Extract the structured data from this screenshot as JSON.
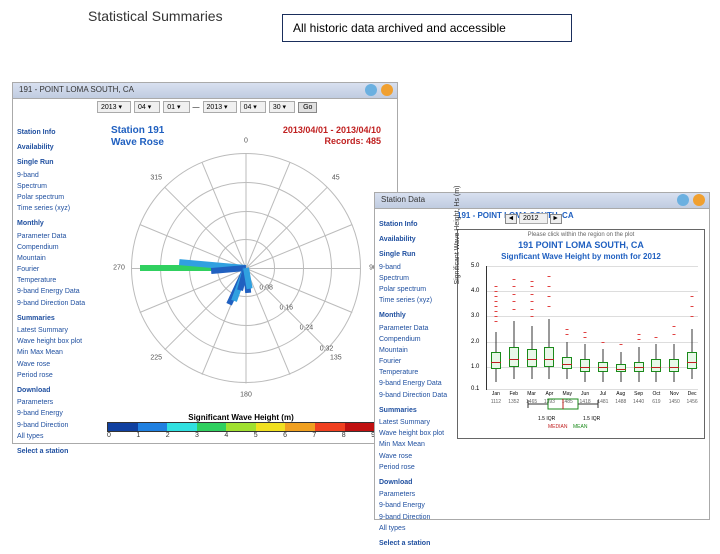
{
  "titles": {
    "main": "Statistical Summaries",
    "archive_note": "All historic data archived and accessible"
  },
  "left_panel": {
    "header": "191 - POINT LOMA SOUTH, CA",
    "date_selectors": [
      "2013",
      "04",
      "01",
      "2013",
      "04",
      "30"
    ],
    "go_label": "Go",
    "sidebar": {
      "groups": [
        {
          "head": "Station Info",
          "items": []
        },
        {
          "head": "Availability",
          "items": []
        },
        {
          "head": "Single Run",
          "items": [
            "9-band",
            "Spectrum",
            "Polar spectrum",
            "Time series (xyz)"
          ]
        },
        {
          "head": "Monthly",
          "items": [
            "Parameter Data",
            "Compendium",
            "Mountain",
            "Fourier",
            "Temperature",
            "9-band Energy Data",
            "9-band Direction Data"
          ]
        },
        {
          "head": "Summaries",
          "items": [
            "Latest Summary",
            "Wave height box plot",
            "Min Max Mean",
            "Wave rose",
            "Period rose"
          ]
        },
        {
          "head": "Download",
          "items": [
            "Parameters",
            "9-band Energy",
            "9-band Direction",
            "All types"
          ]
        },
        {
          "head": "Select a station",
          "items": []
        }
      ]
    },
    "chart": {
      "title_left_1": "Station 191",
      "title_left_2": "Wave Rose",
      "title_right_1": "2013/04/01 - 2013/04/10",
      "title_right_2": "Records: 485",
      "compass": [
        "0",
        "45",
        "90",
        "135",
        "180",
        "225",
        "270",
        "315"
      ],
      "ring_labels": [
        "0.08",
        "0.16",
        "0.24",
        "0.32"
      ],
      "bars": [
        {
          "angle": 270,
          "len": 0.92,
          "color": "#30d060"
        },
        {
          "angle": 275,
          "len": 0.58,
          "color": "#30a0e0"
        },
        {
          "angle": 265,
          "len": 0.3,
          "color": "#2060c0"
        },
        {
          "angle": 205,
          "len": 0.35,
          "color": "#2060c0"
        },
        {
          "angle": 200,
          "len": 0.3,
          "color": "#30a0e0"
        },
        {
          "angle": 195,
          "len": 0.2,
          "color": "#2060c0"
        },
        {
          "angle": 175,
          "len": 0.22,
          "color": "#2060c0"
        },
        {
          "angle": 170,
          "len": 0.18,
          "color": "#30a0e0"
        }
      ]
    },
    "legend": {
      "title": "Significant Wave Height (m)",
      "colors": [
        "#1040a0",
        "#2080e0",
        "#30e0e0",
        "#30d060",
        "#a0e030",
        "#f0e020",
        "#f0a020",
        "#f04020",
        "#c01010"
      ],
      "ticks": [
        "0",
        "1",
        "2",
        "3",
        "4",
        "5",
        "6",
        "7",
        "8",
        "9"
      ]
    }
  },
  "right_panel": {
    "header": "Station Data",
    "header_sub": "191 - POINT LOMA SOUTH, CA",
    "year": "2012",
    "sidebar": {
      "groups": [
        {
          "head": "Station Info",
          "items": []
        },
        {
          "head": "Availability",
          "items": []
        },
        {
          "head": "Single Run",
          "items": [
            "9-band",
            "Spectrum",
            "Polar spectrum",
            "Time series (xyz)"
          ]
        },
        {
          "head": "Monthly",
          "items": [
            "Parameter Data",
            "Compendium",
            "Mountain",
            "Fourier",
            "Temperature",
            "9-band Energy Data",
            "9-band Direction Data"
          ]
        },
        {
          "head": "Summaries",
          "items": [
            "Latest Summary",
            "Wave height box plot",
            "Min Max Mean",
            "Wave rose",
            "Period rose"
          ]
        },
        {
          "head": "Download",
          "items": [
            "Parameters",
            "9-band Energy",
            "9-band Direction",
            "All types"
          ]
        },
        {
          "head": "Select a station",
          "items": []
        }
      ]
    },
    "chart": {
      "hint": "Please click within the region on the plot",
      "title1": "191  POINT LOMA SOUTH, CA",
      "title2": "Signficant Wave Height by month for 2012",
      "ylabel": "Significant Wave Height, Hs (m)",
      "ylim": [
        0,
        5
      ],
      "yticks": [
        0.1,
        1.0,
        2.0,
        3.0,
        4.0,
        5.0
      ],
      "months": [
        "Jan",
        "Feb",
        "Mar",
        "Apr",
        "May",
        "Jun",
        "Jul",
        "Aug",
        "Sep",
        "Oct",
        "Nov",
        "Dec"
      ],
      "counts": [
        "1112",
        "1352",
        "1465",
        "1393",
        "1485",
        "1418",
        "1481",
        "1488",
        "1440",
        "619",
        "1450",
        "1456"
      ],
      "boxes": [
        {
          "wl": 0.4,
          "q1": 0.9,
          "med": 1.2,
          "q3": 1.6,
          "wh": 2.4,
          "out": [
            2.8,
            3.0,
            3.2,
            3.4,
            3.6,
            3.8,
            4.0,
            4.2
          ]
        },
        {
          "wl": 0.5,
          "q1": 1.0,
          "med": 1.3,
          "q3": 1.8,
          "wh": 2.8,
          "out": [
            3.3,
            3.6,
            3.9,
            4.2,
            4.5
          ]
        },
        {
          "wl": 0.5,
          "q1": 1.0,
          "med": 1.3,
          "q3": 1.7,
          "wh": 2.6,
          "out": [
            3.0,
            3.3,
            3.6,
            3.9,
            4.2,
            4.4
          ]
        },
        {
          "wl": 0.5,
          "q1": 1.0,
          "med": 1.3,
          "q3": 1.8,
          "wh": 2.9,
          "out": [
            3.4,
            3.8,
            4.2,
            4.6
          ]
        },
        {
          "wl": 0.5,
          "q1": 0.9,
          "med": 1.1,
          "q3": 1.4,
          "wh": 2.0,
          "out": [
            2.3,
            2.5
          ]
        },
        {
          "wl": 0.4,
          "q1": 0.8,
          "med": 1.0,
          "q3": 1.3,
          "wh": 1.9,
          "out": [
            2.2,
            2.4
          ]
        },
        {
          "wl": 0.4,
          "q1": 0.8,
          "med": 1.0,
          "q3": 1.2,
          "wh": 1.7,
          "out": [
            2.0
          ]
        },
        {
          "wl": 0.4,
          "q1": 0.8,
          "med": 0.9,
          "q3": 1.1,
          "wh": 1.6,
          "out": [
            1.9
          ]
        },
        {
          "wl": 0.4,
          "q1": 0.8,
          "med": 1.0,
          "q3": 1.2,
          "wh": 1.8,
          "out": [
            2.1,
            2.3
          ]
        },
        {
          "wl": 0.4,
          "q1": 0.8,
          "med": 1.0,
          "q3": 1.3,
          "wh": 1.9,
          "out": [
            2.2
          ]
        },
        {
          "wl": 0.4,
          "q1": 0.8,
          "med": 1.0,
          "q3": 1.3,
          "wh": 1.9,
          "out": [
            2.3,
            2.6
          ]
        },
        {
          "wl": 0.5,
          "q1": 0.9,
          "med": 1.2,
          "q3": 1.6,
          "wh": 2.5,
          "out": [
            3.0,
            3.4,
            3.8
          ]
        }
      ]
    }
  }
}
